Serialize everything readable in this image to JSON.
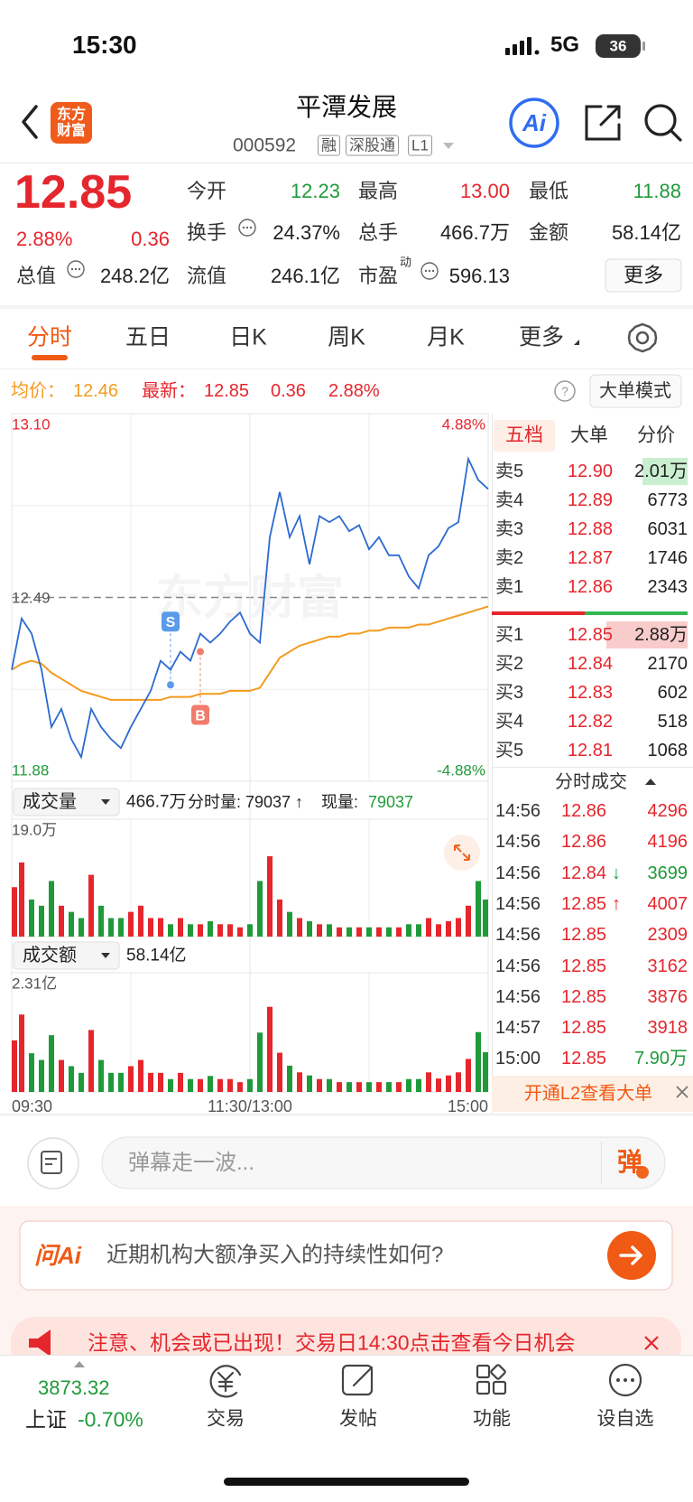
{
  "status_bar": {
    "time": "15:30",
    "network": "5G",
    "battery": "36"
  },
  "header": {
    "logo": "东方财富",
    "title": "平潭发展",
    "code": "000592",
    "tags": [
      "融",
      "深股通",
      "L1"
    ],
    "ai_button": "Ai"
  },
  "quote": {
    "price": "12.85",
    "change_pct": "2.88%",
    "change": "0.36",
    "pe_superscript": "动",
    "more_button": "更多",
    "fields": [
      {
        "label": "今开",
        "value": "12.23",
        "color": "#1f9a3a"
      },
      {
        "label": "最高",
        "value": "13.00",
        "color": "#e5262d"
      },
      {
        "label": "最低",
        "value": "11.88",
        "color": "#1f9a3a"
      },
      {
        "label": "换手",
        "value": "24.37%",
        "color": "#222222"
      },
      {
        "label": "总手",
        "value": "466.7万",
        "color": "#222222"
      },
      {
        "label": "金额",
        "value": "58.14亿",
        "color": "#222222"
      },
      {
        "label": "总值",
        "value": "248.2亿",
        "color": "#222222"
      },
      {
        "label": "流值",
        "value": "246.1亿",
        "color": "#222222"
      },
      {
        "label": "市盈",
        "value": "596.13",
        "color": "#222222"
      }
    ]
  },
  "tabs": {
    "items": [
      "分时",
      "五日",
      "日K",
      "周K",
      "月K",
      "更多"
    ],
    "active": 0
  },
  "info_bar": {
    "avg_label": "均价：",
    "avg": "12.46",
    "last_label": "最新：",
    "last": "12.85",
    "change": "0.36",
    "change_pct": "2.88%",
    "mode_button": "大单模式"
  },
  "chart_data": [
    {
      "type": "line",
      "watermark": "东方财富",
      "x": [
        0,
        5,
        10,
        15,
        20,
        25,
        30,
        35,
        40,
        45,
        50,
        55,
        60,
        65,
        70,
        75,
        80,
        85,
        90,
        95,
        100,
        105,
        110,
        115,
        120,
        125,
        130,
        135,
        140,
        145,
        150,
        155,
        160,
        165,
        170,
        175,
        180,
        185,
        190,
        195,
        200,
        205,
        210,
        215,
        220,
        225,
        230,
        235,
        240
      ],
      "xlim": [
        0,
        240
      ],
      "xticks": [
        {
          "value": 0,
          "label": "09:30"
        },
        {
          "value": 120,
          "label": "11:30/13:00"
        },
        {
          "value": 240,
          "label": "15:00"
        }
      ],
      "ylim": [
        11.88,
        13.1
      ],
      "yticks": [
        {
          "value": 13.1,
          "label": "13.10"
        },
        12.49,
        11.88
      ],
      "y2lim": [
        -4.88,
        4.88
      ],
      "y2ticks": [
        {
          "value": 4.88,
          "label": "4.88%"
        },
        {
          "value": -4.88,
          "label": "-4.88%"
        }
      ],
      "grid": true,
      "series": [
        {
          "color": "#2c6ad0",
          "values": [
            12.25,
            12.42,
            12.37,
            12.25,
            12.06,
            12.12,
            12.02,
            11.96,
            12.12,
            12.06,
            12.02,
            11.99,
            12.06,
            12.12,
            12.18,
            12.28,
            12.25,
            12.31,
            12.28,
            12.37,
            12.34,
            12.37,
            12.41,
            12.44,
            12.37,
            12.34,
            12.69,
            12.84,
            12.69,
            12.76,
            12.6,
            12.76,
            12.74,
            12.76,
            12.71,
            12.73,
            12.65,
            12.69,
            12.63,
            12.63,
            12.56,
            12.52,
            12.63,
            12.66,
            12.72,
            12.74,
            12.95,
            12.88,
            12.85
          ]
        },
        {
          "color": "#f39b1f",
          "values": [
            12.25,
            12.27,
            12.28,
            12.27,
            12.24,
            12.22,
            12.2,
            12.18,
            12.17,
            12.16,
            12.15,
            12.15,
            12.15,
            12.15,
            12.15,
            12.15,
            12.16,
            12.16,
            12.16,
            12.17,
            12.17,
            12.17,
            12.18,
            12.18,
            12.18,
            12.19,
            12.24,
            12.29,
            12.31,
            12.33,
            12.34,
            12.35,
            12.36,
            12.36,
            12.37,
            12.37,
            12.38,
            12.38,
            12.39,
            12.39,
            12.39,
            12.4,
            12.4,
            12.41,
            12.42,
            12.43,
            12.44,
            12.45,
            12.46
          ]
        }
      ],
      "markers": [
        {
          "label": "S",
          "x": 80,
          "value": 12.2,
          "color": "#5b9bea"
        },
        {
          "label": "B",
          "x": 95,
          "value": 12.31,
          "color": "#f07c6c"
        }
      ]
    },
    {
      "type": "bar",
      "title": "成交量",
      "total": "466.7万",
      "period_label": "分时量:",
      "period_value": "79037 ↑",
      "current_label": "现量:",
      "current_value": "79037",
      "x": [
        0,
        5,
        10,
        15,
        20,
        25,
        30,
        35,
        40,
        45,
        50,
        55,
        60,
        65,
        70,
        75,
        80,
        85,
        90,
        95,
        100,
        105,
        110,
        115,
        120,
        125,
        130,
        135,
        140,
        145,
        150,
        155,
        160,
        165,
        170,
        175,
        180,
        185,
        190,
        195,
        200,
        205,
        210,
        215,
        220,
        225,
        230,
        235,
        240
      ],
      "xlim": [
        0,
        240
      ],
      "ylim": [
        0,
        19
      ],
      "yticks": [
        {
          "value": 19,
          "label": "19.0万"
        }
      ],
      "colors": {
        "up": "#e5262d",
        "down": "#1f9a3a"
      },
      "values": [
        8,
        12,
        6,
        5,
        9,
        5,
        4,
        3,
        10,
        5,
        3,
        3,
        4,
        5,
        3,
        3,
        2,
        3,
        2,
        2,
        2.5,
        2,
        2,
        1.5,
        2,
        9,
        13,
        6,
        4,
        3,
        2.5,
        2,
        2,
        1.5,
        1.5,
        1.5,
        1.5,
        1.5,
        1.5,
        1.5,
        2,
        2,
        3,
        2,
        2.5,
        3,
        5,
        9,
        6
      ]
    },
    {
      "type": "bar",
      "title": "成交额",
      "total": "58.14亿",
      "x": [
        0,
        5,
        10,
        15,
        20,
        25,
        30,
        35,
        40,
        45,
        50,
        55,
        60,
        65,
        70,
        75,
        80,
        85,
        90,
        95,
        100,
        105,
        110,
        115,
        120,
        125,
        130,
        135,
        140,
        145,
        150,
        155,
        160,
        165,
        170,
        175,
        180,
        185,
        190,
        195,
        200,
        205,
        210,
        215,
        220,
        225,
        230,
        235,
        240
      ],
      "xlim": [
        0,
        240
      ],
      "ylim": [
        0,
        2.31
      ],
      "yticks": [
        {
          "value": 2.31,
          "label": "2.31亿"
        }
      ],
      "colors": {
        "up": "#e5262d",
        "down": "#1f9a3a"
      },
      "values": [
        1.0,
        1.5,
        0.75,
        0.62,
        1.1,
        0.62,
        0.5,
        0.37,
        1.2,
        0.62,
        0.37,
        0.37,
        0.5,
        0.62,
        0.37,
        0.37,
        0.25,
        0.37,
        0.25,
        0.25,
        0.31,
        0.25,
        0.25,
        0.19,
        0.25,
        1.15,
        1.65,
        0.76,
        0.51,
        0.38,
        0.32,
        0.25,
        0.25,
        0.19,
        0.19,
        0.19,
        0.19,
        0.19,
        0.19,
        0.19,
        0.25,
        0.25,
        0.38,
        0.26,
        0.32,
        0.38,
        0.64,
        1.16,
        0.77
      ]
    }
  ],
  "order_book": {
    "tabs": [
      "五档",
      "大单",
      "分价"
    ],
    "asks": [
      [
        "卖5",
        "12.90",
        "2.01万"
      ],
      [
        "卖4",
        "12.89",
        "6773"
      ],
      [
        "卖3",
        "12.88",
        "6031"
      ],
      [
        "卖2",
        "12.87",
        "1746"
      ],
      [
        "卖1",
        "12.86",
        "2343"
      ]
    ],
    "bids": [
      [
        "买1",
        "12.85",
        "2.88万"
      ],
      [
        "买2",
        "12.84",
        "2170"
      ],
      [
        "买3",
        "12.83",
        "602"
      ],
      [
        "买4",
        "12.82",
        "518"
      ],
      [
        "买5",
        "12.81",
        "1068"
      ]
    ]
  },
  "trades": {
    "title": "分时成交",
    "rows": [
      {
        "time": "14:56",
        "price": "12.86",
        "volume": "4296",
        "color": "#e5262d"
      },
      {
        "time": "14:56",
        "price": "12.86",
        "volume": "4196",
        "color": "#e5262d"
      },
      {
        "time": "14:56",
        "price": "12.84",
        "arrow": "↓",
        "volume": "3699",
        "color": "#1f9a3a"
      },
      {
        "time": "14:56",
        "price": "12.85",
        "arrow": "↑",
        "volume": "4007",
        "color": "#e5262d"
      },
      {
        "time": "14:56",
        "price": "12.85",
        "volume": "2309",
        "color": "#e5262d"
      },
      {
        "time": "14:56",
        "price": "12.85",
        "volume": "3162",
        "color": "#e5262d"
      },
      {
        "time": "14:56",
        "price": "12.85",
        "volume": "3876",
        "color": "#e5262d"
      },
      {
        "time": "14:57",
        "price": "12.85",
        "volume": "3918",
        "color": "#e5262d"
      },
      {
        "time": "15:00",
        "price": "12.85",
        "volume": "7.90万",
        "color": "#1f9a3a"
      }
    ],
    "footer": "开通L2查看大单"
  },
  "comment": {
    "placeholder": "弹幕走一波...",
    "button": "弹"
  },
  "ai_prompt": {
    "brand": "问Ai",
    "question": "近期机构大额净买入的持续性如何?"
  },
  "notice": "注意、机会或已出现！交易日14:30点击查看今日机会",
  "tab_bar": {
    "index_value": "3873.32",
    "index_name": "上证",
    "index_change": "-0.70%",
    "items": [
      "交易",
      "发帖",
      "功能",
      "设自选"
    ]
  }
}
